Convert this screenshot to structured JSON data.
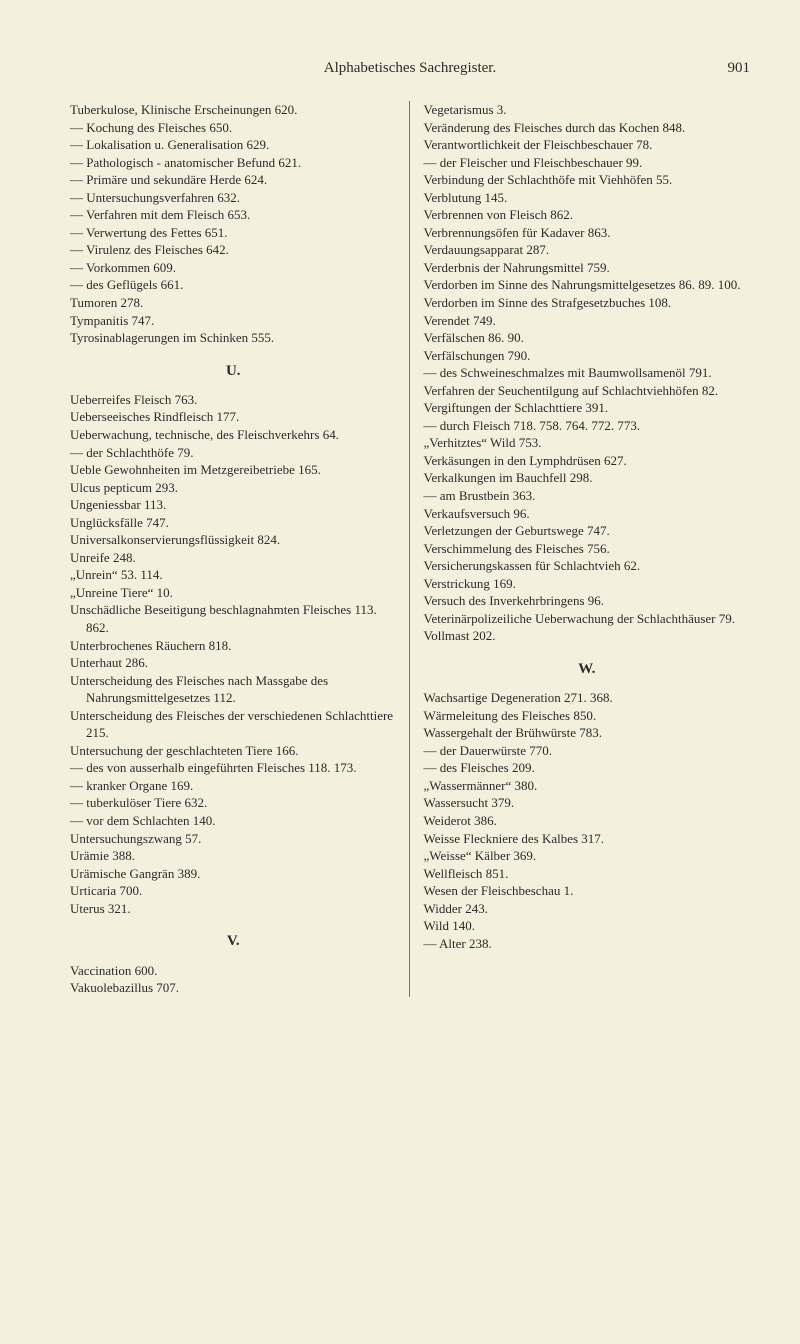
{
  "header": {
    "title": "Alphabetisches Sachregister.",
    "pageNumber": "901"
  },
  "leftColumn": {
    "block1": [
      "Tuberkulose, Klinische Erscheinungen 620.",
      "— Kochung des Fleisches 650.",
      "— Lokalisation u. Generalisation 629.",
      "— Pathologisch - anatomischer Befund 621.",
      "— Primäre und sekundäre Herde 624.",
      "— Untersuchungsverfahren 632.",
      "— Verfahren mit dem Fleisch 653.",
      "— Verwertung des Fettes 651.",
      "— Virulenz des Fleisches 642.",
      "— Vorkommen 609.",
      "— des Geflügels 661.",
      "Tumoren 278.",
      "Tympanitis 747.",
      "Tyrosinablagerungen im Schinken 555."
    ],
    "letterU": "U.",
    "block2": [
      "Ueberreifes Fleisch 763.",
      "Ueberseeisches Rindfleisch 177.",
      "Ueberwachung, technische, des Fleischverkehrs 64.",
      "— der Schlachthöfe 79.",
      "Ueble Gewohnheiten im Metzgereibetriebe 165.",
      "Ulcus pepticum 293.",
      "Ungeniessbar 113.",
      "Unglücksfälle 747.",
      "Universalkonservierungsflüssigkeit 824.",
      "Unreife 248.",
      "„Unrein“ 53. 114.",
      "„Unreine Tiere“ 10.",
      "Unschädliche Beseitigung beschlagnahmten Fleisches 113. 862.",
      "Unterbrochenes Räuchern 818.",
      "Unterhaut 286.",
      "Unterscheidung des Fleisches nach Massgabe des Nahrungsmittelgesetzes 112.",
      "Unterscheidung des Fleisches der verschiedenen Schlachttiere 215.",
      "Untersuchung der geschlachteten Tiere 166.",
      "— des von ausserhalb eingeführten Fleisches 118. 173.",
      "— kranker Organe 169.",
      "— tuberkulöser Tiere 632.",
      "— vor dem Schlachten 140.",
      "Untersuchungszwang 57.",
      "Urämie 388.",
      "Urämische Gangrän 389.",
      "Urticaria 700.",
      "Uterus 321."
    ],
    "letterV": "V.",
    "block3": [
      "Vaccination 600.",
      "Vakuolebazillus 707."
    ]
  },
  "rightColumn": {
    "block1": [
      "Vegetarismus 3.",
      "Veränderung des Fleisches durch das Kochen 848.",
      "Verantwortlichkeit der Fleischbeschauer 78.",
      "— der Fleischer und Fleischbeschauer 99.",
      "Verbindung der Schlachthöfe mit Viehhöfen 55.",
      "Verblutung 145.",
      "Verbrennen von Fleisch 862.",
      "Verbrennungsöfen für Kadaver 863.",
      "Verdauungsapparat 287.",
      "Verderbnis der Nahrungsmittel 759.",
      "Verdorben im Sinne des Nahrungsmittelgesetzes 86. 89. 100.",
      "Verdorben im Sinne des Strafgesetzbuches 108.",
      "Verendet 749.",
      "Verfälschen 86. 90.",
      "Verfälschungen 790.",
      "— des Schweineschmalzes mit Baumwollsamenöl 791.",
      "Verfahren der Seuchentilgung auf Schlachtviehhöfen 82.",
      "Vergiftungen der Schlachttiere 391.",
      "— durch Fleisch 718. 758. 764. 772. 773.",
      "„Verhitztes“ Wild 753.",
      "Verkäsungen in den Lymphdrüsen 627.",
      "Verkalkungen im Bauchfell 298.",
      "— am Brustbein 363.",
      "Verkaufsversuch 96.",
      "Verletzungen der Geburtswege 747.",
      "Verschimmelung des Fleisches 756.",
      "Versicherungskassen für Schlachtvieh 62.",
      "Verstrickung 169.",
      "Versuch des Inverkehrbringens 96.",
      "Veterinärpolizeiliche Ueberwachung der Schlachthäuser 79.",
      "Vollmast 202."
    ],
    "letterW": "W.",
    "block2": [
      "Wachsartige Degeneration 271. 368.",
      "Wärmeleitung des Fleisches 850.",
      "Wassergehalt der Brühwürste 783.",
      "— der Dauerwürste 770.",
      "— des Fleisches 209.",
      "„Wassermänner“ 380.",
      "Wassersucht 379.",
      "Weiderot 386.",
      "Weisse Fleckniere des Kalbes 317.",
      "„Weisse“ Kälber 369.",
      "Wellfleisch 851.",
      "Wesen der Fleischbeschau 1.",
      "Widder 243.",
      "Wild 140.",
      "— Alter 238."
    ]
  }
}
